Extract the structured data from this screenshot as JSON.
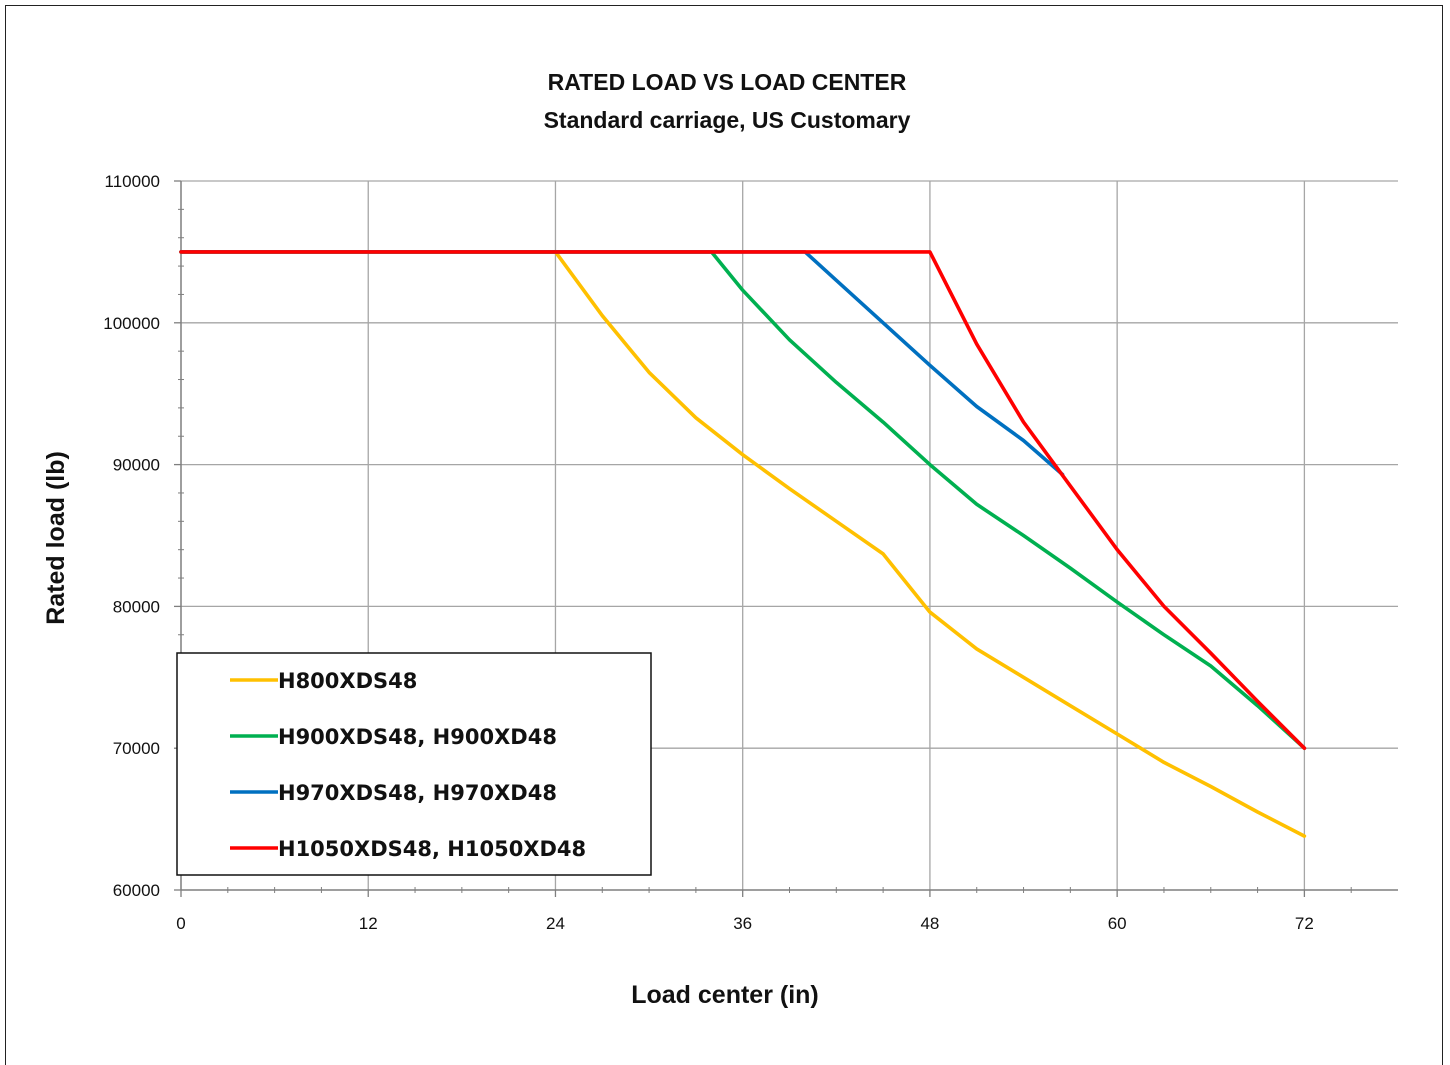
{
  "chart_data": {
    "type": "line",
    "title": "RATED LOAD VS LOAD CENTER",
    "subtitle": "Standard carriage, US Customary",
    "xlabel": "Load center (in)",
    "ylabel": "Rated load (lb)",
    "xlim": [
      0,
      78
    ],
    "ylim": [
      60000,
      110000
    ],
    "xticks": [
      0,
      12,
      24,
      36,
      48,
      60,
      72
    ],
    "yticks": [
      60000,
      70000,
      80000,
      90000,
      100000,
      110000
    ],
    "grid": true,
    "legend_position": "bottom-left",
    "series": [
      {
        "name": "H800XDS48",
        "color": "#ffc000",
        "points": [
          [
            0,
            105000
          ],
          [
            24,
            105000
          ],
          [
            27,
            100500
          ],
          [
            30,
            96500
          ],
          [
            33,
            93300
          ],
          [
            36,
            90700
          ],
          [
            39,
            88300
          ],
          [
            42,
            86000
          ],
          [
            45,
            83700
          ],
          [
            48,
            79600
          ],
          [
            51,
            77000
          ],
          [
            54,
            75000
          ],
          [
            57,
            73000
          ],
          [
            60,
            71000
          ],
          [
            63,
            69000
          ],
          [
            66,
            67300
          ],
          [
            69,
            65500
          ],
          [
            72,
            63800
          ]
        ]
      },
      {
        "name": "H900XDS48, H900XD48",
        "color": "#00b050",
        "points": [
          [
            0,
            105000
          ],
          [
            34,
            105000
          ],
          [
            36,
            102300
          ],
          [
            39,
            98800
          ],
          [
            42,
            95800
          ],
          [
            45,
            93000
          ],
          [
            48,
            90000
          ],
          [
            51,
            87200
          ],
          [
            54,
            85000
          ],
          [
            57,
            82700
          ],
          [
            60,
            80300
          ],
          [
            63,
            78000
          ],
          [
            66,
            75800
          ],
          [
            69,
            73000
          ],
          [
            72,
            70000
          ]
        ]
      },
      {
        "name": "H970XDS48, H970XD48",
        "color": "#0070c0",
        "points": [
          [
            0,
            105000
          ],
          [
            40,
            105000
          ],
          [
            42,
            103000
          ],
          [
            45,
            100000
          ],
          [
            48,
            97000
          ],
          [
            51,
            94100
          ],
          [
            54,
            91700
          ],
          [
            56.5,
            89300
          ]
        ]
      },
      {
        "name": "H1050XDS48, H1050XD48",
        "color": "#ff0000",
        "points": [
          [
            0,
            105000
          ],
          [
            48,
            105000
          ],
          [
            51,
            98500
          ],
          [
            54,
            93000
          ],
          [
            57,
            88500
          ],
          [
            60,
            84000
          ],
          [
            63,
            80000
          ],
          [
            66,
            76700
          ],
          [
            69,
            73300
          ],
          [
            72,
            70000
          ]
        ]
      }
    ]
  }
}
